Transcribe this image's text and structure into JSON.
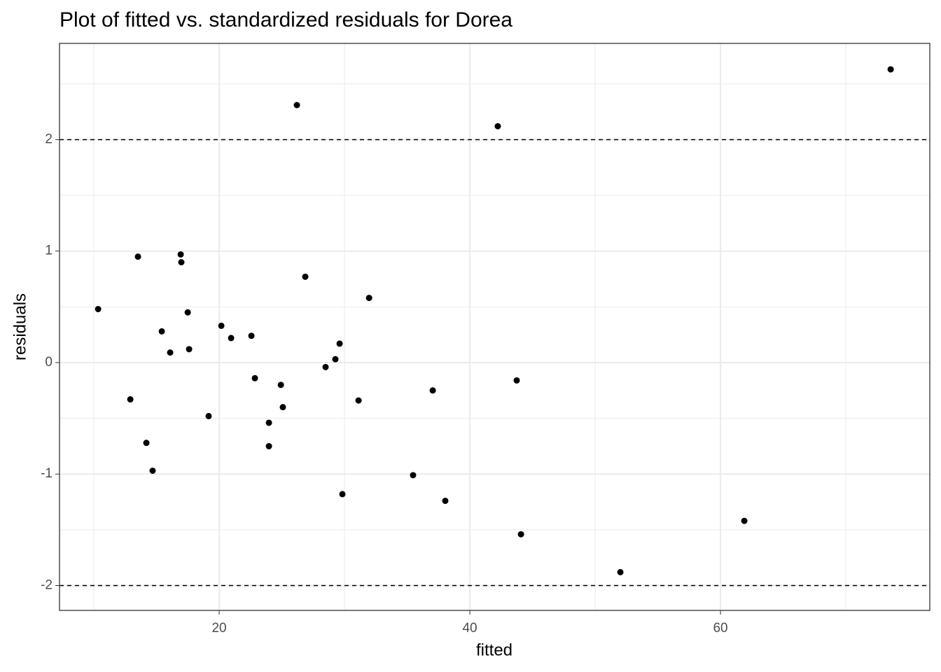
{
  "chart_data": {
    "type": "scatter",
    "title": "Plot of fitted vs. standardized residuals for Dorea",
    "x_label": "fitted",
    "y_label": "residuals",
    "color": "#000000",
    "grid": true,
    "xlim": [
      7.26,
      76.7
    ],
    "ylim": [
      -2.223,
      2.863
    ],
    "xticks": [
      20,
      40,
      60
    ],
    "yticks": [
      -2,
      -1,
      0,
      1,
      2
    ],
    "hlines": [
      2,
      -2
    ],
    "x": [
      10.34,
      12.91,
      13.52,
      14.19,
      14.69,
      15.42,
      16.09,
      16.93,
      16.98,
      17.49,
      17.6,
      19.16,
      20.17,
      20.95,
      22.57,
      22.85,
      23.97,
      23.97,
      24.92,
      25.08,
      26.2,
      26.87,
      28.49,
      29.27,
      29.61,
      29.83,
      31.12,
      31.96,
      35.47,
      37.04,
      38.04,
      42.23,
      43.74,
      44.08,
      52.01,
      61.9,
      73.58
    ],
    "values": [
      0.48,
      -0.33,
      0.95,
      -0.72,
      -0.97,
      0.28,
      0.09,
      0.97,
      0.9,
      0.45,
      0.12,
      -0.48,
      0.33,
      0.22,
      0.24,
      -0.14,
      -0.54,
      -0.75,
      -0.2,
      -0.4,
      2.31,
      0.77,
      -0.04,
      0.03,
      0.17,
      -1.18,
      -0.34,
      0.58,
      -1.01,
      -0.25,
      -1.24,
      2.12,
      -0.16,
      -1.54,
      -1.88,
      -1.42,
      2.63
    ]
  }
}
